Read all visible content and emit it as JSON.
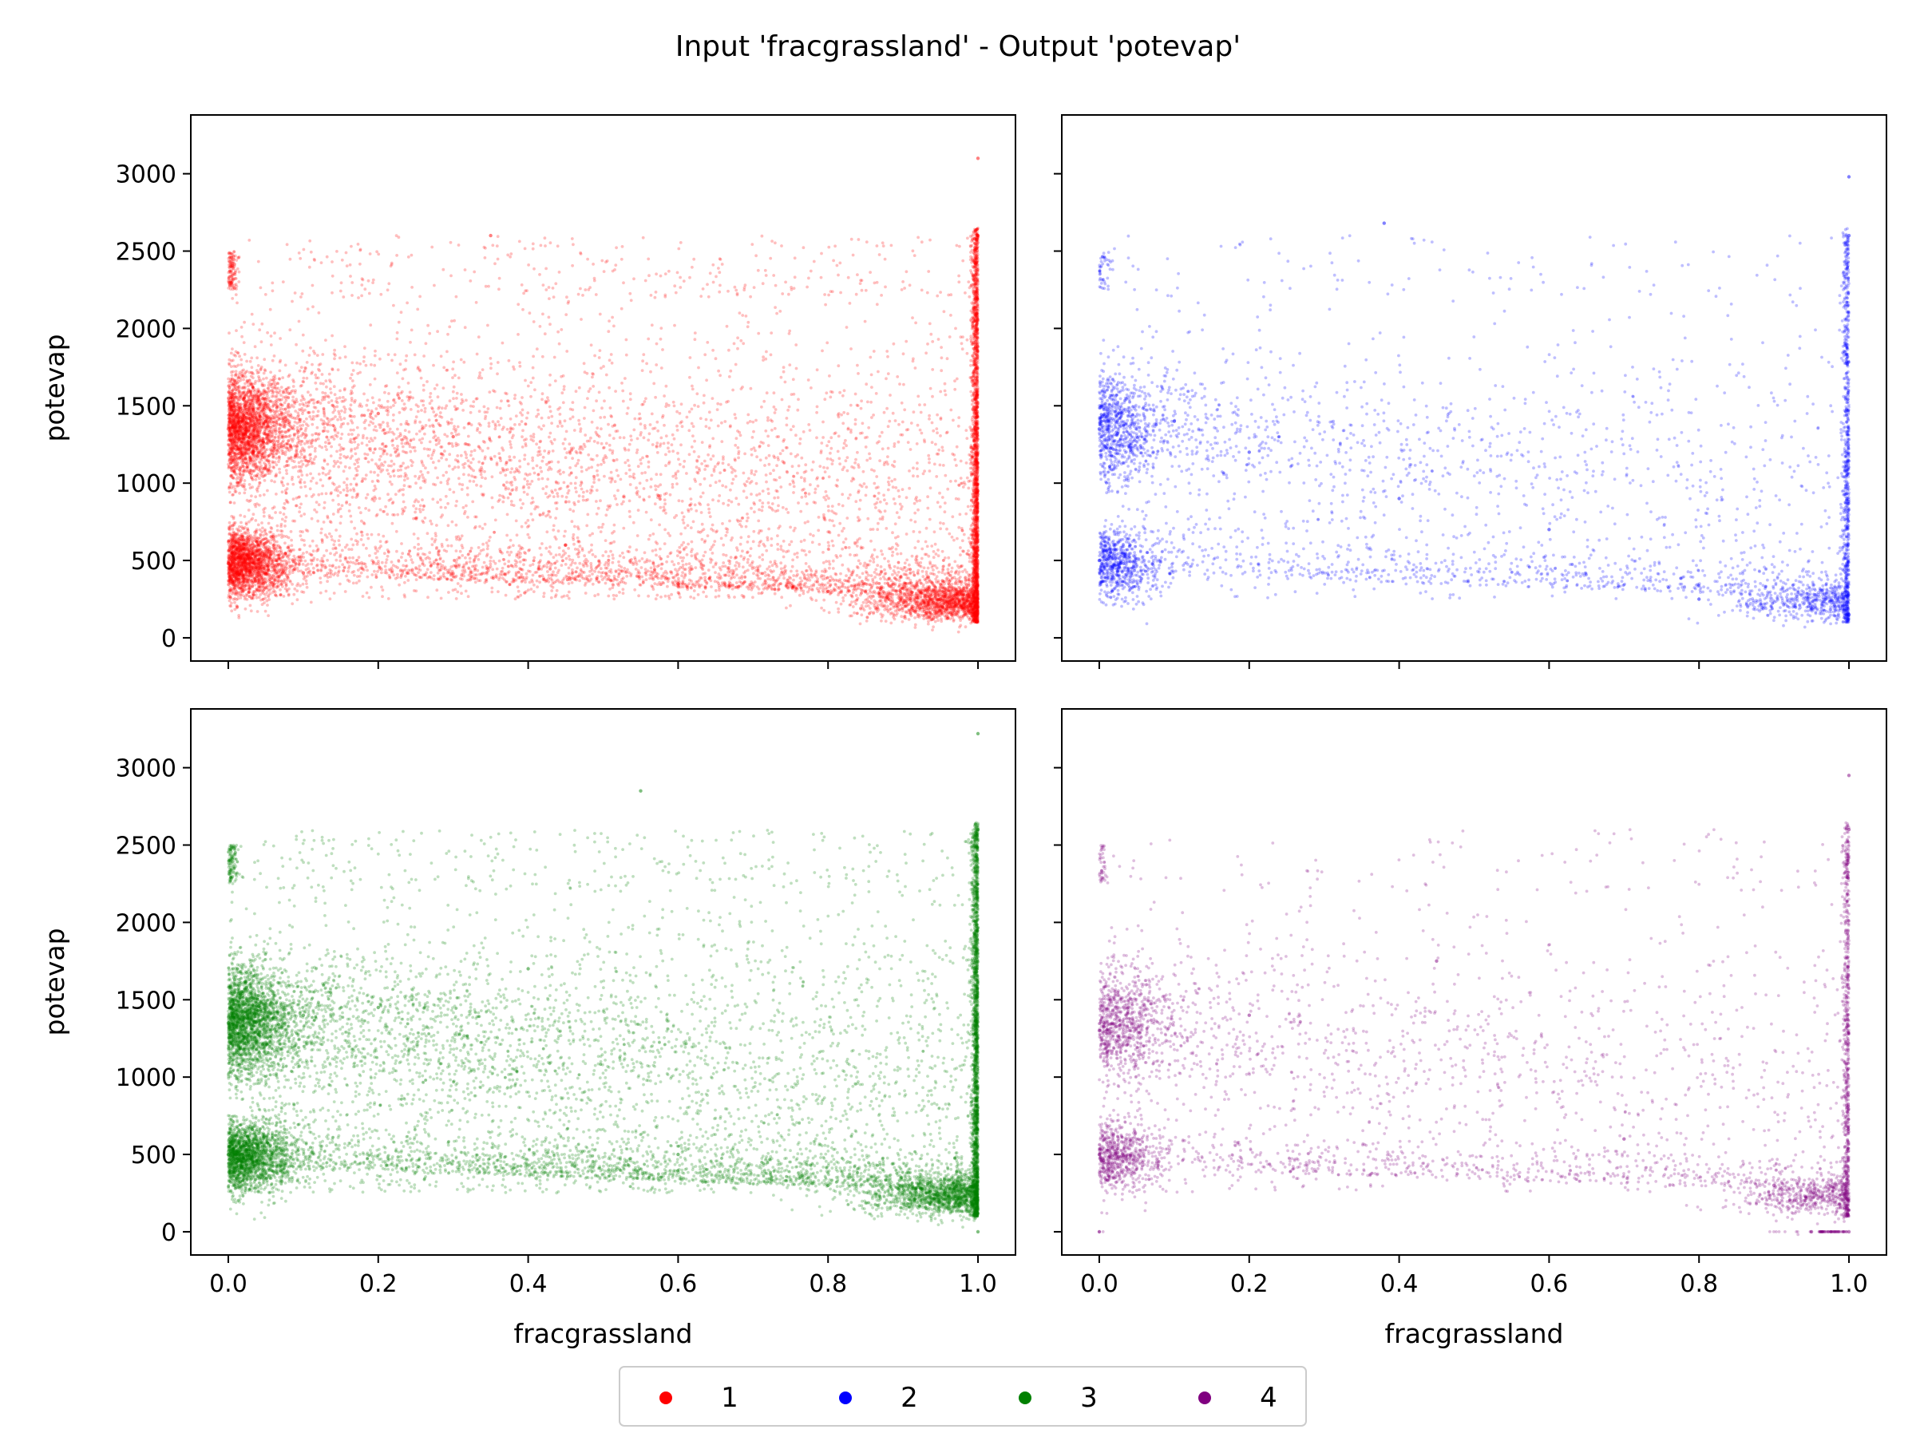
{
  "figure": {
    "title": "Input 'fracgrassland' - Output 'potevap'"
  },
  "chart_data": [
    {
      "type": "scatter",
      "series_key": "1",
      "color": "#ff0000",
      "xlabel": "",
      "ylabel": "potevap",
      "xlim": [
        -0.05,
        1.05
      ],
      "ylim": [
        -150,
        3380
      ],
      "xticks": [
        0.0,
        0.2,
        0.4,
        0.6,
        0.8,
        1.0
      ],
      "yticks": [
        0,
        500,
        1000,
        1500,
        2000,
        2500,
        3000
      ],
      "x_tick_labels_shown": false,
      "y_tick_labels_shown": true,
      "points_sample": [
        [
          0.0,
          1350
        ],
        [
          0.0,
          480
        ],
        [
          0.05,
          1400
        ],
        [
          0.1,
          420
        ],
        [
          0.2,
          1450
        ],
        [
          0.3,
          1300
        ],
        [
          0.45,
          600
        ],
        [
          0.6,
          350
        ],
        [
          0.8,
          300
        ],
        [
          0.95,
          250
        ],
        [
          1.0,
          2600
        ],
        [
          1.0,
          3100
        ],
        [
          1.0,
          200
        ],
        [
          0.35,
          2600
        ]
      ],
      "max_point": [
        1.0,
        3100
      ]
    },
    {
      "type": "scatter",
      "series_key": "2",
      "color": "#0000ff",
      "xlabel": "",
      "ylabel": "",
      "xlim": [
        -0.05,
        1.05
      ],
      "ylim": [
        -150,
        3380
      ],
      "xticks": [
        0.0,
        0.2,
        0.4,
        0.6,
        0.8,
        1.0
      ],
      "yticks": [
        0,
        500,
        1000,
        1500,
        2000,
        2500,
        3000
      ],
      "x_tick_labels_shown": false,
      "y_tick_labels_shown": false,
      "points_sample": [
        [
          0.0,
          1350
        ],
        [
          0.0,
          500
        ],
        [
          0.1,
          1400
        ],
        [
          0.2,
          1200
        ],
        [
          0.4,
          900
        ],
        [
          0.6,
          700
        ],
        [
          0.8,
          250
        ],
        [
          1.0,
          2600
        ],
        [
          1.0,
          150
        ],
        [
          1.0,
          2980
        ],
        [
          0.38,
          2680
        ]
      ],
      "max_point": [
        1.0,
        2980
      ]
    },
    {
      "type": "scatter",
      "series_key": "3",
      "color": "#008000",
      "xlabel": "fracgrassland",
      "ylabel": "potevap",
      "xlim": [
        -0.05,
        1.05
      ],
      "ylim": [
        -150,
        3380
      ],
      "xticks": [
        0.0,
        0.2,
        0.4,
        0.6,
        0.8,
        1.0
      ],
      "yticks": [
        0,
        500,
        1000,
        1500,
        2000,
        2500,
        3000
      ],
      "x_tick_labels_shown": true,
      "y_tick_labels_shown": true,
      "points_sample": [
        [
          0.0,
          1350
        ],
        [
          0.0,
          500
        ],
        [
          0.1,
          1400
        ],
        [
          0.2,
          1450
        ],
        [
          0.4,
          1700
        ],
        [
          0.6,
          500
        ],
        [
          0.8,
          300
        ],
        [
          1.0,
          2600
        ],
        [
          1.0,
          3220
        ],
        [
          0.55,
          2850
        ],
        [
          1.0,
          0
        ]
      ],
      "max_point": [
        1.0,
        3220
      ]
    },
    {
      "type": "scatter",
      "series_key": "4",
      "color": "#800080",
      "xlabel": "fracgrassland",
      "ylabel": "",
      "xlim": [
        -0.05,
        1.05
      ],
      "ylim": [
        -150,
        3380
      ],
      "xticks": [
        0.0,
        0.2,
        0.4,
        0.6,
        0.8,
        1.0
      ],
      "yticks": [
        0,
        500,
        1000,
        1500,
        2000,
        2500,
        3000
      ],
      "x_tick_labels_shown": true,
      "y_tick_labels_shown": false,
      "points_sample": [
        [
          0.0,
          1300
        ],
        [
          0.0,
          500
        ],
        [
          0.0,
          0
        ],
        [
          0.2,
          1400
        ],
        [
          0.45,
          1750
        ],
        [
          0.7,
          600
        ],
        [
          0.9,
          300
        ],
        [
          1.0,
          2600
        ],
        [
          1.0,
          2950
        ],
        [
          0.95,
          0
        ],
        [
          1.0,
          0
        ]
      ],
      "max_point": [
        1.0,
        2950
      ]
    }
  ],
  "legend": {
    "placement": "bottom-center",
    "entries": [
      {
        "label": "1",
        "color": "#ff0000"
      },
      {
        "label": "2",
        "color": "#0000ff"
      },
      {
        "label": "3",
        "color": "#008000"
      },
      {
        "label": "4",
        "color": "#800080"
      }
    ]
  }
}
